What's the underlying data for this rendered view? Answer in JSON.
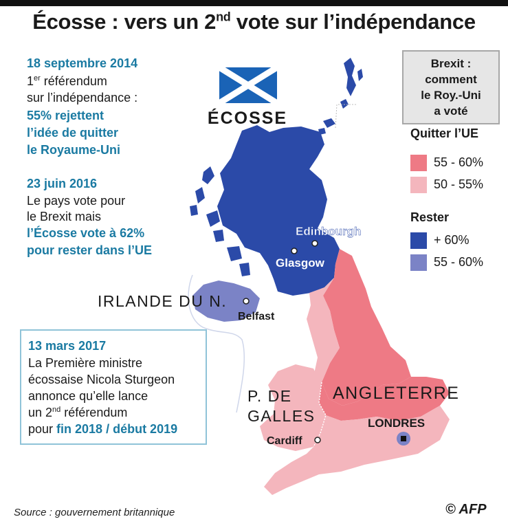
{
  "title": {
    "main": "Écosse : vers un 2",
    "sup": "nd",
    "rest": " vote sur l’indépendance"
  },
  "timeline": {
    "e1": {
      "date": "18 septembre 2014",
      "l1a": "1",
      "l1sup": "er",
      "l1b": " référendum",
      "l2": "sur l’indépendance :",
      "h1": "55% rejettent",
      "h2": "l’idée de quitter",
      "h3": "le Royaume-Uni"
    },
    "e2": {
      "date": "23 juin 2016",
      "l1": "Le pays vote pour",
      "l2": "le Brexit mais",
      "h1": "l’Écosse vote à 62%",
      "h2": "pour rester dans l’UE"
    },
    "e3": {
      "date": "13 mars 2017",
      "l1": "La Première ministre",
      "l2": "écossaise Nicola Sturgeon",
      "l3": "annonce qu’elle lance",
      "l4a": "un 2",
      "l4sup": "nd",
      "l4b": " référendum",
      "l5a": "pour ",
      "l5h": "fin 2018 / début 2019"
    }
  },
  "legend": {
    "head": [
      "Brexit :",
      "comment",
      "le Roy.-Uni",
      "a voté"
    ],
    "leave_title": "Quitter l’UE",
    "remain_title": "Rester",
    "items": [
      {
        "label": "55 - 60%",
        "color": "#ee7a85"
      },
      {
        "label": "50 - 55%",
        "color": "#f4b6bd"
      },
      {
        "label": "+ 60%",
        "color": "#2b4aa8"
      },
      {
        "label": "55 - 60%",
        "color": "#7b83c6"
      }
    ]
  },
  "map": {
    "regions": {
      "scotland": "ÉCOSSE",
      "northern_ireland": "IRLANDE DU N.",
      "wales_1": "P. DE",
      "wales_2": "GALLES",
      "england": "ANGLETERRE"
    },
    "cities": {
      "edinburgh": "Edinbourgh",
      "glasgow": "Glasgow",
      "belfast": "Belfast",
      "cardiff": "Cardiff",
      "london": "LONDRES"
    },
    "colors": {
      "leave_high": "#ee7a85",
      "leave_low": "#f4b6bd",
      "remain_high": "#2b4aa8",
      "remain_low": "#7b83c6"
    }
  },
  "footer": {
    "source": "Source : gouvernement britannique",
    "credit": "© AFP"
  }
}
